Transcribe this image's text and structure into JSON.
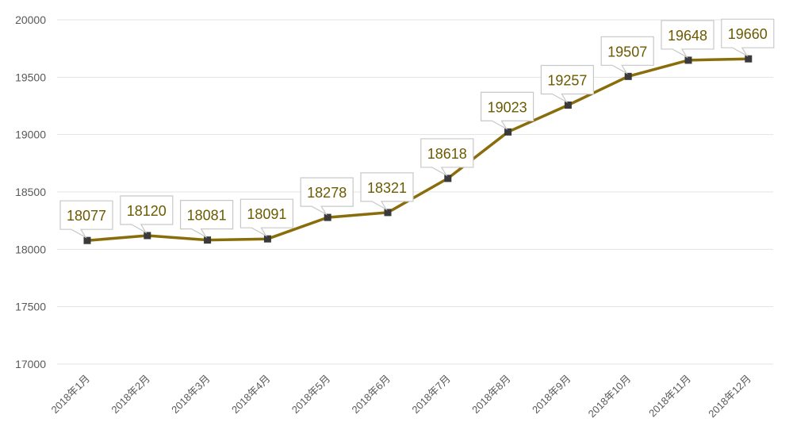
{
  "chart_data": {
    "type": "line",
    "title": "",
    "xlabel": "",
    "ylabel": "",
    "categories": [
      "2018年1月",
      "2018年2月",
      "2018年3月",
      "2018年4月",
      "2018年5月",
      "2018年6月",
      "2018年7月",
      "2018年8月",
      "2018年9月",
      "2018年10月",
      "2018年11月",
      "2018年12月"
    ],
    "series": [
      {
        "values": [
          18077,
          18120,
          18081,
          18091,
          18278,
          18321,
          18618,
          19023,
          19257,
          19507,
          19648,
          19660
        ]
      }
    ],
    "ylim": [
      17000,
      20000
    ],
    "yticks": [
      "17000",
      "17500",
      "18000",
      "18500",
      "19000",
      "19500",
      "20000"
    ],
    "data_labels": [
      "18077",
      "18120",
      "18081",
      "18091",
      "18278",
      "18321",
      "18618",
      "19023",
      "19257",
      "19507",
      "19648",
      "19660"
    ],
    "grid": true,
    "legend": "none",
    "colors": {
      "line": "#8a6d0b",
      "marker": "#3a3a3a",
      "label_text": "#6b5a00",
      "label_border": "#c8c8c8",
      "grid": "#e3e3e3",
      "tick_text": "#595959"
    }
  }
}
